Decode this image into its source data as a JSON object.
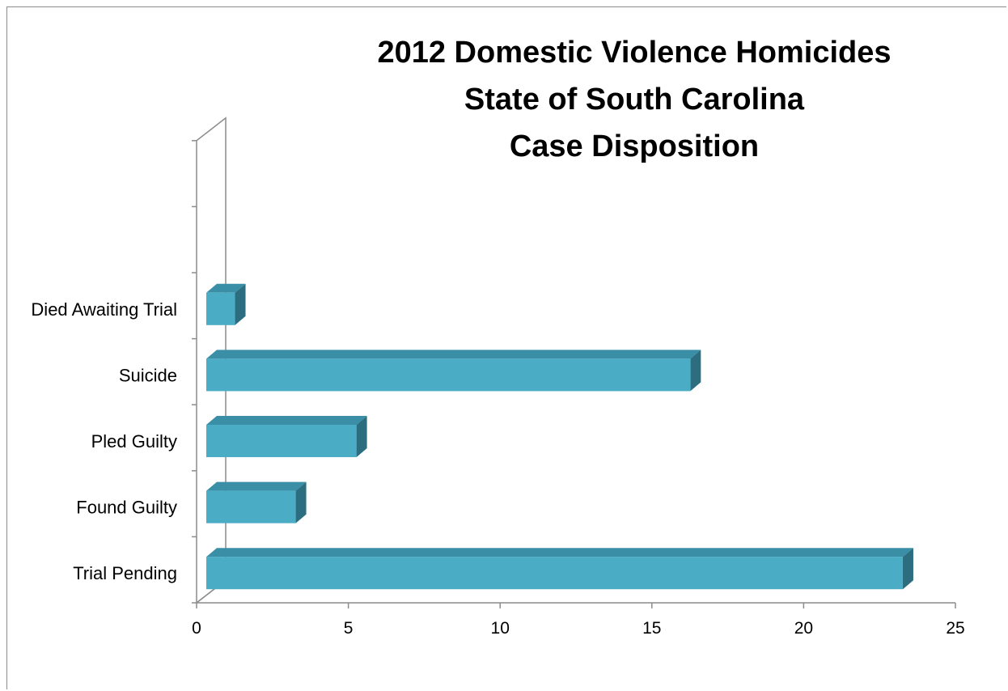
{
  "chart_data": {
    "type": "bar",
    "orientation": "horizontal",
    "style": "3d",
    "title": "2012 Domestic Violence Homicides State of South Carolina Case Disposition",
    "title_lines": [
      "2012 Domestic Violence Homicides",
      "State of South Carolina",
      "Case Disposition"
    ],
    "categories": [
      "Trial Pending",
      "Found Guilty",
      "Pled Guilty",
      "Suicide",
      "Died Awaiting Trial"
    ],
    "values": [
      23,
      3,
      5,
      16,
      1
    ],
    "empty_category_slots_above": 2,
    "xlim": [
      0,
      25
    ],
    "x_ticks": [
      "0",
      "5",
      "10",
      "15",
      "20",
      "25"
    ],
    "xlabel": "",
    "ylabel": "",
    "grid": false,
    "legend": "none",
    "colors": {
      "bar_front": "#4bacc6",
      "bar_top": "#3a8fa6",
      "bar_side": "#2c6e80",
      "axis": "#8c8c8c"
    }
  }
}
